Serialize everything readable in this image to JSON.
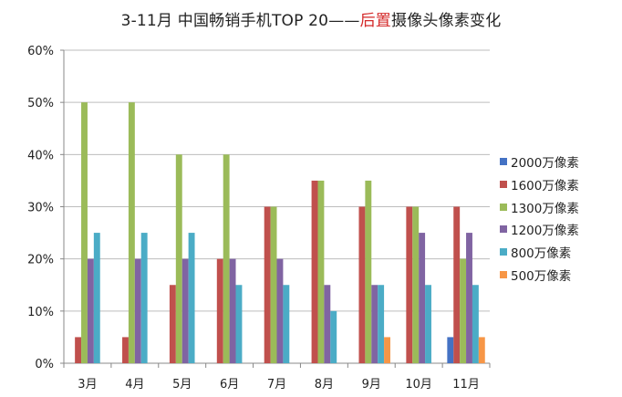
{
  "title": {
    "part1": "3-11月 中国畅销手机TOP 20——",
    "highlight": "后置",
    "part2": "摄像头像素变化",
    "highlight_color": "#d42a2a"
  },
  "chart_data": {
    "type": "bar",
    "title": "3-11月 中国畅销手机TOP 20——后置摄像头像素变化",
    "xlabel": "",
    "ylabel": "",
    "ylim": [
      0,
      0.6
    ],
    "yticks": [
      "0%",
      "10%",
      "20%",
      "30%",
      "40%",
      "50%",
      "60%"
    ],
    "grid": true,
    "legend_position": "right",
    "categories": [
      "3月",
      "4月",
      "5月",
      "6月",
      "7月",
      "8月",
      "9月",
      "10月",
      "11月"
    ],
    "series": [
      {
        "name": "2000万像素",
        "color": "#4472c4",
        "values": [
          0,
          0,
          0,
          0,
          0,
          0,
          0,
          0,
          5
        ]
      },
      {
        "name": "1600万像素",
        "color": "#c0504d",
        "values": [
          5,
          5,
          15,
          20,
          30,
          35,
          30,
          30,
          30
        ]
      },
      {
        "name": "1300万像素",
        "color": "#9bbb59",
        "values": [
          50,
          50,
          40,
          40,
          30,
          35,
          35,
          30,
          20
        ]
      },
      {
        "name": "1200万像素",
        "color": "#8064a2",
        "values": [
          20,
          20,
          20,
          20,
          20,
          15,
          15,
          25,
          25
        ]
      },
      {
        "name": "800万像素",
        "color": "#4bacc6",
        "values": [
          25,
          25,
          25,
          15,
          15,
          10,
          15,
          15,
          15
        ]
      },
      {
        "name": "500万像素",
        "color": "#f79646",
        "values": [
          0,
          0,
          0,
          0,
          0,
          0,
          5,
          0,
          5
        ]
      }
    ],
    "unit": "%"
  }
}
